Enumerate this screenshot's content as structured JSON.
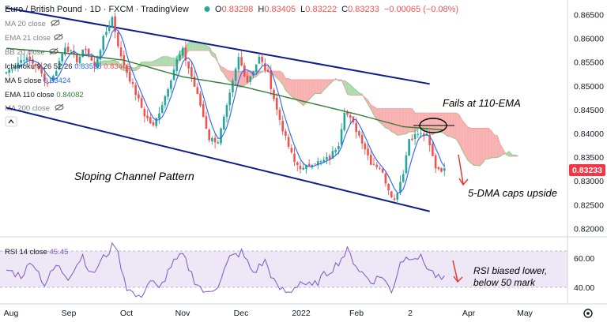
{
  "header": {
    "symbol": "Euro / British Pound · 1D · FXCM · TradingView",
    "dot_color": "#26a69a",
    "ohlc": {
      "o_label": "O",
      "o": "0.83298",
      "h_label": "H",
      "h": "0.83405",
      "l_label": "L",
      "l": "0.83222",
      "c_label": "C",
      "c": "0.83233",
      "chg": "−0.00065 (−0.08%)"
    }
  },
  "legend": {
    "ma20": "MA 20 close",
    "ema21": "EMA 21 close",
    "bb20": "BB 20 close",
    "ichimoku_label": "Ichimoku 9 26 52 26",
    "ichimoku_v1": "0.83536",
    "ichimoku_v2": "0.83403",
    "ma5_label": "MA 5 close",
    "ma5_value": "0.83424",
    "ema110_label": "EMA 110 close",
    "ema110_value": "0.84082",
    "ma200": "MA 200 close"
  },
  "price_axis": {
    "ticks": [
      "0.86500",
      "0.86000",
      "0.85500",
      "0.85000",
      "0.84500",
      "0.84000",
      "0.83500",
      "0.83000",
      "0.82500",
      "0.82000"
    ],
    "last_price": "0.83233",
    "last_price_color": "#f23645"
  },
  "rsi": {
    "label": "RSI 14 close",
    "value": "45.45",
    "ticks": [
      "60.00",
      "40.00"
    ],
    "line_color": "#7e57c2",
    "band_color": "#ede7f6"
  },
  "time_axis": {
    "labels": [
      "Aug",
      "Sep",
      "Oct",
      "Nov",
      "Dec",
      "2022",
      "Feb",
      "2",
      "Apr",
      "May"
    ]
  },
  "annotations": {
    "fails": "Fails at 110-EMA",
    "channel": "Sloping Channel Pattern",
    "dma": "5-DMA caps upside",
    "rsi_line1": "RSI biased lower,",
    "rsi_line2": "below 50 mark"
  },
  "colors": {
    "up": "#26a69a",
    "down": "#ef5350",
    "channel": "#0d1b8c",
    "ema110": "#2e7d32",
    "ma5": "#2962ff",
    "cloud_bear": "#f8a7a7",
    "cloud_bull": "#a5d6a7",
    "arrow": "#e53935"
  },
  "chart_data": {
    "type": "candlestick",
    "title": "Euro / British Pound · 1D · FXCM",
    "x_labels": [
      "Aug",
      "Sep",
      "Oct",
      "Nov",
      "Dec",
      "2022",
      "Feb",
      "2",
      "Apr",
      "May"
    ],
    "price_range": [
      0.8185,
      0.866
    ],
    "rsi_range": [
      25,
      75
    ],
    "channel": {
      "upper": [
        [
          0,
          0.8665
        ],
        [
          144,
          0.8505
        ]
      ],
      "lower": [
        [
          0,
          0.8455
        ],
        [
          144,
          0.8237
        ]
      ]
    },
    "segments": [
      [
        0,
        0.853
      ],
      [
        6,
        0.856
      ],
      [
        10,
        0.8545
      ],
      [
        14,
        0.8505
      ],
      [
        16,
        0.852
      ],
      [
        20,
        0.8585
      ],
      [
        24,
        0.8555
      ],
      [
        27,
        0.858
      ],
      [
        30,
        0.854
      ],
      [
        33,
        0.86
      ],
      [
        36,
        0.8645
      ],
      [
        39,
        0.856
      ],
      [
        43,
        0.85
      ],
      [
        47,
        0.844
      ],
      [
        50,
        0.8415
      ],
      [
        54,
        0.848
      ],
      [
        58,
        0.8555
      ],
      [
        60,
        0.8575
      ],
      [
        63,
        0.852
      ],
      [
        66,
        0.846
      ],
      [
        69,
        0.839
      ],
      [
        72,
        0.8385
      ],
      [
        75,
        0.8455
      ],
      [
        79,
        0.856
      ],
      [
        82,
        0.851
      ],
      [
        86,
        0.856
      ],
      [
        89,
        0.8525
      ],
      [
        92,
        0.845
      ],
      [
        95,
        0.839
      ],
      [
        98,
        0.834
      ],
      [
        101,
        0.8325
      ],
      [
        104,
        0.834
      ],
      [
        107,
        0.834
      ],
      [
        110,
        0.835
      ],
      [
        113,
        0.838
      ],
      [
        115,
        0.845
      ],
      [
        118,
        0.842
      ],
      [
        121,
        0.8385
      ],
      [
        124,
        0.834
      ],
      [
        127,
        0.833
      ],
      [
        130,
        0.8285
      ],
      [
        132,
        0.826
      ],
      [
        135,
        0.832
      ],
      [
        137,
        0.839
      ],
      [
        140,
        0.84
      ],
      [
        143,
        0.8395
      ],
      [
        146,
        0.833
      ],
      [
        149,
        0.8323
      ]
    ],
    "ema110": [
      [
        0,
        0.858
      ],
      [
        20,
        0.857
      ],
      [
        40,
        0.8555
      ],
      [
        60,
        0.852
      ],
      [
        80,
        0.85
      ],
      [
        100,
        0.847
      ],
      [
        120,
        0.844
      ],
      [
        135,
        0.8415
      ],
      [
        149,
        0.8408
      ]
    ],
    "rsi": [
      [
        0,
        52
      ],
      [
        5,
        48
      ],
      [
        9,
        58
      ],
      [
        13,
        42
      ],
      [
        17,
        55
      ],
      [
        21,
        47
      ],
      [
        26,
        62
      ],
      [
        29,
        48
      ],
      [
        33,
        60
      ],
      [
        37,
        70
      ],
      [
        41,
        40
      ],
      [
        45,
        32
      ],
      [
        49,
        45
      ],
      [
        52,
        38
      ],
      [
        56,
        55
      ],
      [
        60,
        62
      ],
      [
        64,
        45
      ],
      [
        68,
        35
      ],
      [
        72,
        42
      ],
      [
        76,
        60
      ],
      [
        80,
        64
      ],
      [
        84,
        50
      ],
      [
        88,
        58
      ],
      [
        92,
        40
      ],
      [
        96,
        36
      ],
      [
        100,
        44
      ],
      [
        104,
        40
      ],
      [
        108,
        48
      ],
      [
        112,
        55
      ],
      [
        116,
        65
      ],
      [
        120,
        52
      ],
      [
        124,
        44
      ],
      [
        128,
        48
      ],
      [
        131,
        36
      ],
      [
        134,
        58
      ],
      [
        138,
        62
      ],
      [
        141,
        60
      ],
      [
        144,
        52
      ],
      [
        147,
        46
      ],
      [
        149,
        45
      ]
    ]
  }
}
